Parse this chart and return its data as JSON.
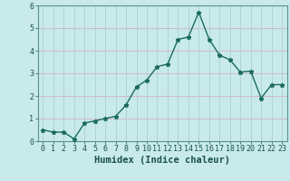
{
  "xlabel": "Humidex (Indice chaleur)",
  "x": [
    0,
    1,
    2,
    3,
    4,
    5,
    6,
    7,
    8,
    9,
    10,
    11,
    12,
    13,
    14,
    15,
    16,
    17,
    18,
    19,
    20,
    21,
    22,
    23
  ],
  "y": [
    0.5,
    0.4,
    0.4,
    0.1,
    0.8,
    0.9,
    1.0,
    1.1,
    1.6,
    2.4,
    2.7,
    3.3,
    3.4,
    4.5,
    4.6,
    5.7,
    4.5,
    3.8,
    3.6,
    3.05,
    3.1,
    1.9,
    2.5,
    2.5
  ],
  "line_color": "#1a6b5a",
  "marker": "*",
  "marker_size": 3.5,
  "line_width": 1.0,
  "bg_color": "#c8eaea",
  "grid_color": "#aed4d4",
  "pink_grid_color": "#d4b8c0",
  "ylim": [
    0,
    6
  ],
  "yticks": [
    0,
    1,
    2,
    3,
    4,
    5,
    6
  ],
  "xticks": [
    0,
    1,
    2,
    3,
    4,
    5,
    6,
    7,
    8,
    9,
    10,
    11,
    12,
    13,
    14,
    15,
    16,
    17,
    18,
    19,
    20,
    21,
    22,
    23
  ],
  "tick_label_fontsize": 6,
  "xlabel_fontsize": 7.5,
  "text_color": "#1a5050"
}
